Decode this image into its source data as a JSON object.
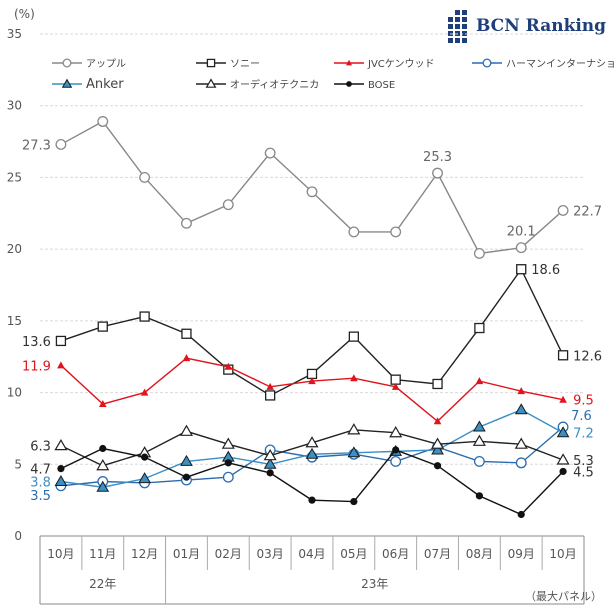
{
  "brand": {
    "text": "BCN Ranking",
    "color": "#1f3f7a"
  },
  "unit_label": "(%)",
  "footnote": "（最大パネル）",
  "chart_data": {
    "type": "line",
    "categories": [
      "10月",
      "11月",
      "12月",
      "01月",
      "02月",
      "03月",
      "04月",
      "05月",
      "06月",
      "07月",
      "08月",
      "09月",
      "10月"
    ],
    "year_groups": [
      {
        "label": "22年",
        "from": 0,
        "to": 2
      },
      {
        "label": "23年",
        "from": 3,
        "to": 12
      }
    ],
    "ylim": [
      0,
      35
    ],
    "yticks": [
      0,
      5,
      10,
      15,
      20,
      25,
      30,
      35
    ],
    "grid": true,
    "legend_position": "top",
    "series": [
      {
        "name": "アップル",
        "color": "#888888",
        "marker": "circle-open",
        "label_color": "#666666",
        "values": [
          27.3,
          28.9,
          25.0,
          21.8,
          23.1,
          26.7,
          24.0,
          21.2,
          21.2,
          25.3,
          19.7,
          20.1,
          22.7
        ],
        "labels": [
          {
            "i": 0,
            "text": "27.3",
            "pos": "left"
          },
          {
            "i": 9,
            "text": "25.3",
            "pos": "above"
          },
          {
            "i": 11,
            "text": "20.1",
            "pos": "above"
          },
          {
            "i": 12,
            "text": "22.7",
            "pos": "right"
          }
        ]
      },
      {
        "name": "ソニー",
        "color": "#222222",
        "marker": "square-open",
        "label_color": "#333333",
        "values": [
          13.6,
          14.6,
          15.3,
          14.1,
          11.6,
          9.8,
          11.3,
          13.9,
          10.9,
          10.6,
          14.5,
          18.6,
          12.6
        ],
        "labels": [
          {
            "i": 0,
            "text": "13.6",
            "pos": "left"
          },
          {
            "i": 11,
            "text": "18.6",
            "pos": "right"
          },
          {
            "i": 12,
            "text": "12.6",
            "pos": "right"
          }
        ]
      },
      {
        "name": "JVCケンウッド",
        "color": "#e0141c",
        "marker": "triangle-small",
        "label_color": "#e0141c",
        "values": [
          11.9,
          9.2,
          10.0,
          12.4,
          11.8,
          10.4,
          10.8,
          11.0,
          10.4,
          8.0,
          10.8,
          10.1,
          9.5
        ],
        "labels": [
          {
            "i": 0,
            "text": "11.9",
            "pos": "left"
          },
          {
            "i": 12,
            "text": "9.5",
            "pos": "right"
          }
        ]
      },
      {
        "name": "ハーマンインターナショナル",
        "color": "#2b6cb0",
        "marker": "circle-open",
        "label_color": "#2b6cb0",
        "values": [
          3.5,
          3.8,
          3.7,
          3.9,
          4.1,
          6.0,
          5.5,
          5.7,
          5.2,
          6.2,
          5.2,
          5.1,
          7.6
        ],
        "labels": [
          {
            "i": 0,
            "text": "3.5",
            "pos": "left-below"
          },
          {
            "i": 12,
            "text": "7.6",
            "pos": "right-above"
          }
        ]
      },
      {
        "name": "Anker",
        "color": "#3a8fc4",
        "marker": "triangle-filled",
        "label_color": "#3a8fc4",
        "values": [
          3.8,
          3.4,
          4.0,
          5.2,
          5.5,
          5.0,
          5.7,
          5.8,
          5.9,
          6.0,
          7.6,
          8.8,
          7.2
        ],
        "labels": [
          {
            "i": 0,
            "text": "3.8",
            "pos": "left"
          },
          {
            "i": 12,
            "text": "7.2",
            "pos": "right"
          }
        ]
      },
      {
        "name": "オーディオテクニカ",
        "color": "#222222",
        "marker": "triangle-open",
        "label_color": "#333333",
        "values": [
          6.3,
          4.9,
          5.8,
          7.3,
          6.4,
          5.6,
          6.5,
          7.4,
          7.2,
          6.4,
          6.6,
          6.4,
          5.3
        ],
        "labels": [
          {
            "i": 0,
            "text": "6.3",
            "pos": "left"
          },
          {
            "i": 12,
            "text": "5.3",
            "pos": "right"
          }
        ]
      },
      {
        "name": "BOSE",
        "color": "#111111",
        "marker": "dot",
        "label_color": "#333333",
        "values": [
          4.7,
          6.1,
          5.5,
          4.1,
          5.1,
          4.4,
          2.5,
          2.4,
          6.0,
          4.9,
          2.8,
          1.5,
          4.5
        ],
        "labels": [
          {
            "i": 0,
            "text": "4.7",
            "pos": "left"
          },
          {
            "i": 12,
            "text": "4.5",
            "pos": "right"
          }
        ]
      }
    ]
  }
}
